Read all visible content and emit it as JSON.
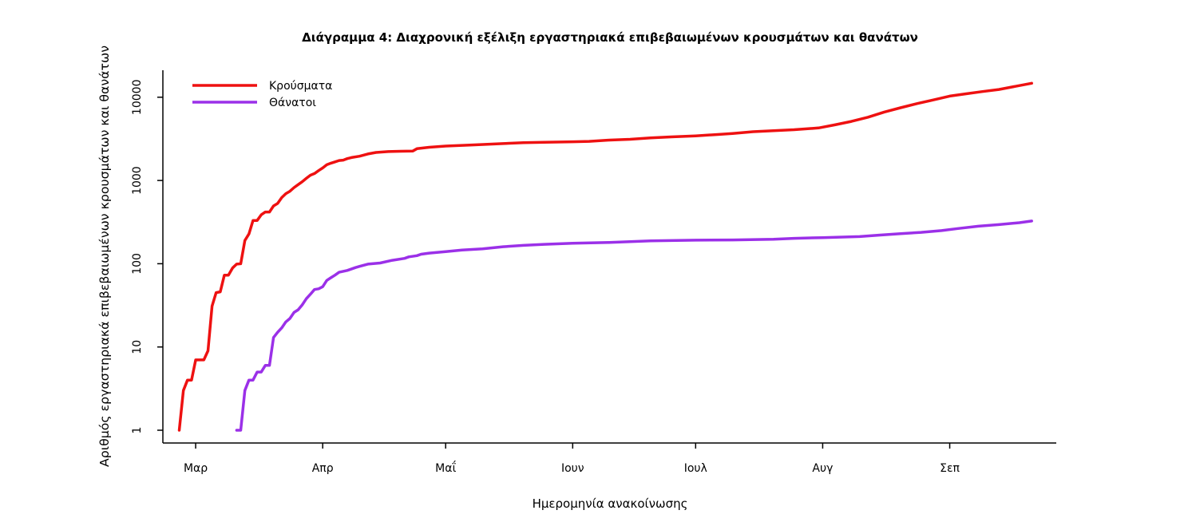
{
  "chart_data": {
    "type": "line",
    "title": "Διάγραμμα 4: Διαχρονική εξέλιξη εργαστηριακά επιβεβαιωμένων κρουσμάτων και θανάτων",
    "xlabel": "Ημερομηνία ανακοίνωσης",
    "ylabel": "Αριθμός εργαστηριακά επιβεβαιωμένων κρουσμάτων και θανάτων",
    "y_scale": "log",
    "ylim": [
      1,
      20000
    ],
    "xlim": [
      "2020-02-22",
      "2020-09-27"
    ],
    "x_ticks": [
      {
        "date": "2020-03-01",
        "label": "Μαρ"
      },
      {
        "date": "2020-04-01",
        "label": "Απρ"
      },
      {
        "date": "2020-05-01",
        "label": "Μαΐ"
      },
      {
        "date": "2020-06-01",
        "label": "Ιουν"
      },
      {
        "date": "2020-07-01",
        "label": "Ιουλ"
      },
      {
        "date": "2020-08-01",
        "label": "Αυγ"
      },
      {
        "date": "2020-09-01",
        "label": "Σεπ"
      }
    ],
    "y_ticks": [
      {
        "value": 1,
        "label": "1"
      },
      {
        "value": 10,
        "label": "10"
      },
      {
        "value": 100,
        "label": "100"
      },
      {
        "value": 1000,
        "label": "1000"
      },
      {
        "value": 10000,
        "label": "10000"
      }
    ],
    "grid": false,
    "legend_position": "top-left",
    "series": [
      {
        "name": "Κρούσματα",
        "color": "#ee1111",
        "points": [
          [
            "2020-02-26",
            1
          ],
          [
            "2020-02-27",
            3
          ],
          [
            "2020-02-28",
            4
          ],
          [
            "2020-02-29",
            4
          ],
          [
            "2020-03-01",
            7
          ],
          [
            "2020-03-02",
            7
          ],
          [
            "2020-03-03",
            7
          ],
          [
            "2020-03-04",
            9
          ],
          [
            "2020-03-05",
            31
          ],
          [
            "2020-03-06",
            45
          ],
          [
            "2020-03-07",
            46
          ],
          [
            "2020-03-08",
            73
          ],
          [
            "2020-03-09",
            73
          ],
          [
            "2020-03-10",
            89
          ],
          [
            "2020-03-11",
            99
          ],
          [
            "2020-03-12",
            100
          ],
          [
            "2020-03-13",
            190
          ],
          [
            "2020-03-14",
            228
          ],
          [
            "2020-03-15",
            331
          ],
          [
            "2020-03-16",
            331
          ],
          [
            "2020-03-17",
            387
          ],
          [
            "2020-03-18",
            418
          ],
          [
            "2020-03-19",
            418
          ],
          [
            "2020-03-20",
            495
          ],
          [
            "2020-03-21",
            530
          ],
          [
            "2020-03-22",
            624
          ],
          [
            "2020-03-23",
            695
          ],
          [
            "2020-03-24",
            743
          ],
          [
            "2020-03-25",
            821
          ],
          [
            "2020-03-26",
            892
          ],
          [
            "2020-03-27",
            966
          ],
          [
            "2020-03-28",
            1061
          ],
          [
            "2020-03-29",
            1156
          ],
          [
            "2020-03-30",
            1212
          ],
          [
            "2020-03-31",
            1314
          ],
          [
            "2020-04-01",
            1415
          ],
          [
            "2020-04-02",
            1544
          ],
          [
            "2020-04-03",
            1613
          ],
          [
            "2020-04-04",
            1673
          ],
          [
            "2020-04-05",
            1735
          ],
          [
            "2020-04-06",
            1755
          ],
          [
            "2020-04-07",
            1832
          ],
          [
            "2020-04-08",
            1884
          ],
          [
            "2020-04-10",
            1955
          ],
          [
            "2020-04-12",
            2081
          ],
          [
            "2020-04-14",
            2170
          ],
          [
            "2020-04-17",
            2224
          ],
          [
            "2020-04-20",
            2245
          ],
          [
            "2020-04-23",
            2260
          ],
          [
            "2020-04-24",
            2408
          ],
          [
            "2020-04-27",
            2506
          ],
          [
            "2020-05-01",
            2591
          ],
          [
            "2020-05-08",
            2678
          ],
          [
            "2020-05-15",
            2770
          ],
          [
            "2020-05-20",
            2850
          ],
          [
            "2020-05-25",
            2880
          ],
          [
            "2020-06-01",
            2918
          ],
          [
            "2020-06-05",
            2952
          ],
          [
            "2020-06-10",
            3058
          ],
          [
            "2020-06-15",
            3121
          ],
          [
            "2020-06-20",
            3250
          ],
          [
            "2020-06-25",
            3340
          ],
          [
            "2020-07-01",
            3432
          ],
          [
            "2020-07-06",
            3562
          ],
          [
            "2020-07-10",
            3672
          ],
          [
            "2020-07-15",
            3854
          ],
          [
            "2020-07-20",
            3964
          ],
          [
            "2020-07-25",
            4073
          ],
          [
            "2020-07-31",
            4279
          ],
          [
            "2020-08-04",
            4662
          ],
          [
            "2020-08-08",
            5123
          ],
          [
            "2020-08-12",
            5749
          ],
          [
            "2020-08-16",
            6632
          ],
          [
            "2020-08-20",
            7472
          ],
          [
            "2020-08-24",
            8381
          ],
          [
            "2020-08-28",
            9280
          ],
          [
            "2020-09-01",
            10317
          ],
          [
            "2020-09-05",
            11000
          ],
          [
            "2020-09-09",
            11700
          ],
          [
            "2020-09-13",
            12400
          ],
          [
            "2020-09-17",
            13500
          ],
          [
            "2020-09-21",
            14700
          ]
        ]
      },
      {
        "name": "Θάνατοι",
        "color": "#9b30e8",
        "points": [
          [
            "2020-03-11",
            1
          ],
          [
            "2020-03-12",
            1
          ],
          [
            "2020-03-13",
            3
          ],
          [
            "2020-03-14",
            4
          ],
          [
            "2020-03-15",
            4
          ],
          [
            "2020-03-16",
            5
          ],
          [
            "2020-03-17",
            5
          ],
          [
            "2020-03-18",
            6
          ],
          [
            "2020-03-19",
            6
          ],
          [
            "2020-03-20",
            13
          ],
          [
            "2020-03-21",
            15
          ],
          [
            "2020-03-22",
            17
          ],
          [
            "2020-03-23",
            20
          ],
          [
            "2020-03-24",
            22
          ],
          [
            "2020-03-25",
            26
          ],
          [
            "2020-03-26",
            28
          ],
          [
            "2020-03-27",
            32
          ],
          [
            "2020-03-28",
            38
          ],
          [
            "2020-03-29",
            43
          ],
          [
            "2020-03-30",
            49
          ],
          [
            "2020-03-31",
            50
          ],
          [
            "2020-04-01",
            53
          ],
          [
            "2020-04-02",
            63
          ],
          [
            "2020-04-03",
            68
          ],
          [
            "2020-04-04",
            73
          ],
          [
            "2020-04-05",
            79
          ],
          [
            "2020-04-07",
            83
          ],
          [
            "2020-04-09",
            90
          ],
          [
            "2020-04-10",
            93
          ],
          [
            "2020-04-12",
            99
          ],
          [
            "2020-04-15",
            102
          ],
          [
            "2020-04-18",
            110
          ],
          [
            "2020-04-21",
            116
          ],
          [
            "2020-04-22",
            121
          ],
          [
            "2020-04-24",
            125
          ],
          [
            "2020-04-25",
            130
          ],
          [
            "2020-04-27",
            134
          ],
          [
            "2020-05-01",
            140
          ],
          [
            "2020-05-05",
            146
          ],
          [
            "2020-05-10",
            151
          ],
          [
            "2020-05-15",
            160
          ],
          [
            "2020-05-20",
            166
          ],
          [
            "2020-05-25",
            171
          ],
          [
            "2020-06-01",
            176
          ],
          [
            "2020-06-10",
            180
          ],
          [
            "2020-06-20",
            188
          ],
          [
            "2020-07-01",
            192
          ],
          [
            "2020-07-10",
            193
          ],
          [
            "2020-07-20",
            197
          ],
          [
            "2020-07-25",
            202
          ],
          [
            "2020-08-01",
            206
          ],
          [
            "2020-08-10",
            212
          ],
          [
            "2020-08-15",
            221
          ],
          [
            "2020-08-20",
            230
          ],
          [
            "2020-08-25",
            238
          ],
          [
            "2020-08-30",
            250
          ],
          [
            "2020-09-03",
            265
          ],
          [
            "2020-09-08",
            282
          ],
          [
            "2020-09-13",
            295
          ],
          [
            "2020-09-18",
            311
          ],
          [
            "2020-09-21",
            326
          ]
        ]
      }
    ]
  }
}
